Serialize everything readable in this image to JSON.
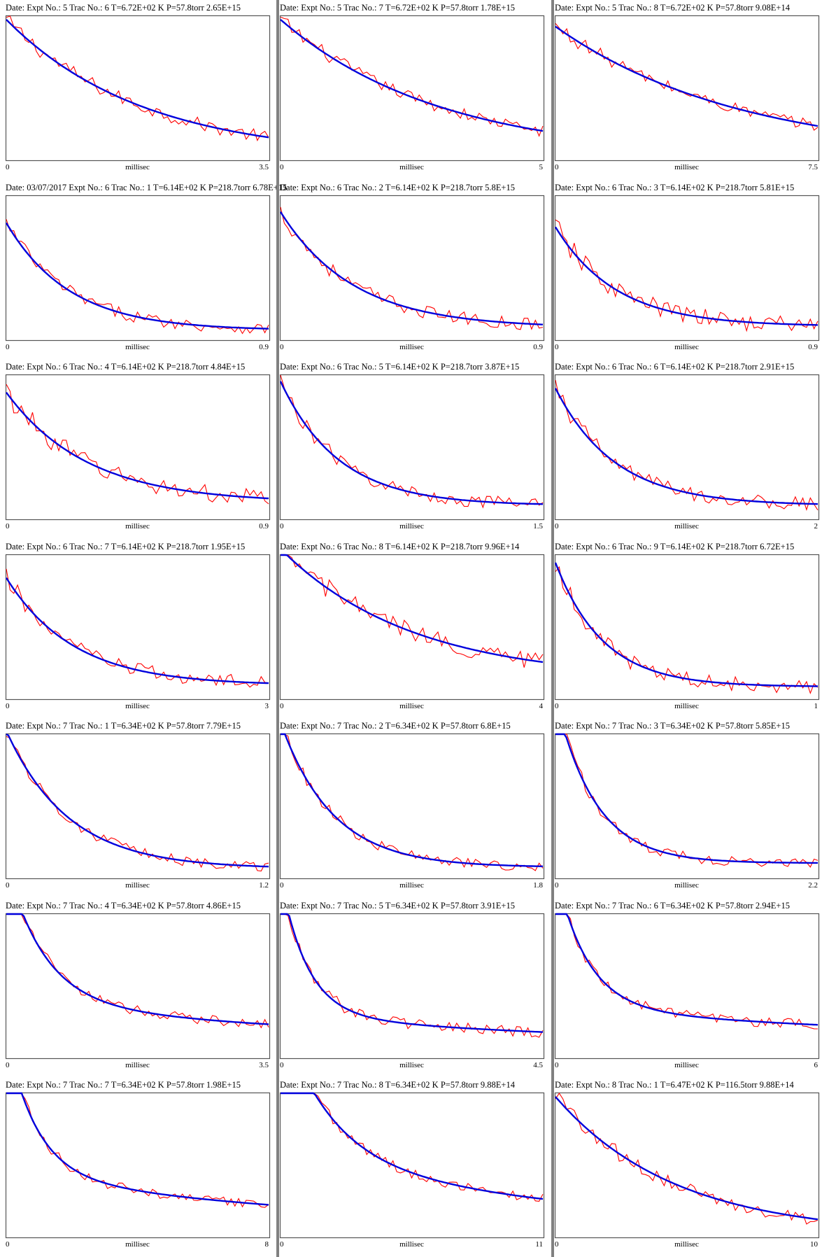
{
  "x_axis_label": "millisec",
  "colors": {
    "signal": "#ff0000",
    "fit": "#0000dd",
    "frame": "#555555",
    "separator": "#808080"
  },
  "chart_data": [
    {
      "type": "line",
      "title": "Date: Expt No.: 5 Trac No.: 6 T=6.72E+02 K P=57.8torr 2.65E+15",
      "xlabel": "millisec",
      "xlim": [
        0,
        3.5
      ],
      "x_tick_labels": [
        "0",
        "3.5"
      ],
      "fit": {
        "y0": 1.0,
        "k": 0.55,
        "c": 0.0
      },
      "noise": 0.045
    },
    {
      "type": "line",
      "title": "Date: Expt No.: 5 Trac No.: 7 T=6.72E+02 K P=57.8torr 1.78E+15",
      "xlabel": "millisec",
      "xlim": [
        0,
        5
      ],
      "x_tick_labels": [
        "0",
        "5"
      ],
      "fit": {
        "y0": 1.0,
        "k": 0.33,
        "c": 0.0
      },
      "noise": 0.04
    },
    {
      "type": "line",
      "title": "Date: Expt No.: 5 Trac No.: 8 T=6.72E+02 K P=57.8torr 9.08E+14",
      "xlabel": "millisec",
      "xlim": [
        0,
        7.5
      ],
      "x_tick_labels": [
        "0",
        "7.5"
      ],
      "fit": {
        "y0": 0.95,
        "k": 0.19,
        "c": 0.0
      },
      "noise": 0.04
    },
    {
      "type": "line",
      "title": "Date: 03/07/2017 Expt No.: 6 Trac No.: 1 T=6.14E+02 K P=218.7torr 6.78E+15",
      "xlabel": "millisec",
      "xlim": [
        0,
        0.9
      ],
      "x_tick_labels": [
        "0",
        "0.9"
      ],
      "fit": {
        "y0": 0.78,
        "k": 4.6,
        "c": 0.05
      },
      "noise": 0.04
    },
    {
      "type": "line",
      "title": "Date: Expt No.: 6 Trac No.: 2 T=6.14E+02 K P=218.7torr 5.8E+15",
      "xlabel": "millisec",
      "xlim": [
        0,
        0.9
      ],
      "x_tick_labels": [
        "0",
        "0.9"
      ],
      "fit": {
        "y0": 0.84,
        "k": 4.0,
        "c": 0.07
      },
      "noise": 0.045
    },
    {
      "type": "line",
      "title": "Date: Expt No.: 6 Trac No.: 3 T=6.14E+02 K P=218.7torr 5.81E+15",
      "xlabel": "millisec",
      "xlim": [
        0,
        0.9
      ],
      "x_tick_labels": [
        "0",
        "0.9"
      ],
      "fit": {
        "y0": 0.72,
        "k": 4.8,
        "c": 0.08
      },
      "noise": 0.06
    },
    {
      "type": "line",
      "title": "Date: Expt No.: 6 Trac No.: 4 T=6.14E+02 K P=218.7torr 4.84E+15",
      "xlabel": "millisec",
      "xlim": [
        0,
        0.9
      ],
      "x_tick_labels": [
        "0",
        "0.9"
      ],
      "fit": {
        "y0": 0.8,
        "k": 3.6,
        "c": 0.1
      },
      "noise": 0.06
    },
    {
      "type": "line",
      "title": "Date: Expt No.: 6 Trac No.: 5 T=6.14E+02 K P=218.7torr 3.87E+15",
      "xlabel": "millisec",
      "xlim": [
        0,
        1.5
      ],
      "x_tick_labels": [
        "0",
        "1.5"
      ],
      "fit": {
        "y0": 0.9,
        "k": 3.0,
        "c": 0.08
      },
      "noise": 0.045
    },
    {
      "type": "line",
      "title": "Date: Expt No.: 6 Trac No.: 6 T=6.14E+02 K P=218.7torr 2.91E+15",
      "xlabel": "millisec",
      "xlim": [
        0,
        2
      ],
      "x_tick_labels": [
        "0",
        "2"
      ],
      "fit": {
        "y0": 0.85,
        "k": 2.2,
        "c": 0.08
      },
      "noise": 0.05
    },
    {
      "type": "line",
      "title": "Date: Expt No.: 6 Trac No.: 7 T=6.14E+02 K P=218.7torr 1.95E+15",
      "xlabel": "millisec",
      "xlim": [
        0,
        3
      ],
      "x_tick_labels": [
        "0",
        "3"
      ],
      "fit": {
        "y0": 0.78,
        "k": 1.3,
        "c": 0.08
      },
      "noise": 0.05
    },
    {
      "type": "line",
      "title": "Date: Expt No.: 6 Trac No.: 8 T=6.14E+02 K P=218.7torr 9.96E+14",
      "xlabel": "millisec",
      "xlim": [
        0,
        4
      ],
      "x_tick_labels": [
        "0",
        "4"
      ],
      "fit": {
        "y0": 0.95,
        "k": 0.5,
        "c": 0.12
      },
      "noise": 0.06
    },
    {
      "type": "line",
      "title": "Date: Expt No.: 6 Trac No.: 9 T=6.14E+02 K P=218.7torr 6.72E+15",
      "xlabel": "millisec",
      "xlim": [
        0,
        1
      ],
      "x_tick_labels": [
        "0",
        "1"
      ],
      "fit": {
        "y0": 0.9,
        "k": 5.5,
        "c": 0.07
      },
      "noise": 0.05
    },
    {
      "type": "line",
      "title": "Date: Expt No.: 7 Trac No.: 1 T=6.34E+02 K P=57.8torr 7.79E+15",
      "xlabel": "millisec",
      "xlim": [
        0,
        1.2
      ],
      "x_tick_labels": [
        "0",
        "1.2"
      ],
      "fit": {
        "y0": 1.0,
        "k": 3.5,
        "c": 0.05
      },
      "noise": 0.035
    },
    {
      "type": "line",
      "title": "Date: Expt No.: 7 Trac No.: 2 T=6.34E+02 K P=57.8torr 6.8E+15",
      "xlabel": "millisec",
      "xlim": [
        0,
        1.8
      ],
      "x_tick_labels": [
        "0",
        "1.8"
      ],
      "fit": {
        "y0": 1.05,
        "k": 2.8,
        "c": 0.06
      },
      "noise": 0.035
    },
    {
      "type": "line",
      "title": "Date: Expt No.: 7 Trac No.: 3 T=6.34E+02 K P=57.8torr 5.85E+15",
      "xlabel": "millisec",
      "xlim": [
        0,
        2.2
      ],
      "x_tick_labels": [
        "0",
        "2.2"
      ],
      "fit": {
        "y0": 1.2,
        "k": 3.0,
        "c": 0.09
      },
      "noise": 0.035
    },
    {
      "type": "line",
      "title": "Date: Expt No.: 7 Trac No.: 4 T=6.34E+02 K P=57.8torr 4.86E+15",
      "xlabel": "millisec",
      "xlim": [
        0,
        3.5
      ],
      "x_tick_labels": [
        "0",
        "3.5"
      ],
      "fit": {
        "y0": 1.0,
        "k": 2.0,
        "c": 0.1,
        "y1": 0.3,
        "k1": 0.25
      },
      "noise": 0.035
    },
    {
      "type": "line",
      "title": "Date: Expt No.: 7 Trac No.: 5 T=6.34E+02 K P=57.8torr 3.91E+15",
      "xlabel": "millisec",
      "xlim": [
        0,
        4.5
      ],
      "x_tick_labels": [
        "0",
        "4.5"
      ],
      "fit": {
        "y0": 1.0,
        "k": 2.2,
        "c": 0.08,
        "y1": 0.22,
        "k1": 0.2
      },
      "noise": 0.04
    },
    {
      "type": "line",
      "title": "Date: Expt No.: 7 Trac No.: 6 T=6.34E+02 K P=57.8torr 2.94E+15",
      "xlabel": "millisec",
      "xlim": [
        0,
        6
      ],
      "x_tick_labels": [
        "0",
        "6"
      ],
      "fit": {
        "y0": 1.0,
        "k": 1.4,
        "c": 0.1,
        "y1": 0.25,
        "k1": 0.12
      },
      "noise": 0.035
    },
    {
      "type": "line",
      "title": "Date: Expt No.: 7 Trac No.: 7 T=6.34E+02 K P=57.8torr 1.98E+15",
      "xlabel": "millisec",
      "xlim": [
        0,
        8
      ],
      "x_tick_labels": [
        "0",
        "8"
      ],
      "fit": {
        "y0": 1.0,
        "k": 1.1,
        "c": 0.05,
        "y1": 0.4,
        "k1": 0.11
      },
      "noise": 0.03
    },
    {
      "type": "line",
      "title": "Date: Expt No.: 7 Trac No.: 8 T=6.34E+02 K P=57.8torr 9.88E+14",
      "xlabel": "millisec",
      "xlim": [
        0,
        11
      ],
      "x_tick_labels": [
        "0",
        "11"
      ],
      "fit": {
        "y0": 1.0,
        "k": 0.5,
        "c": 0.05,
        "y1": 0.55,
        "k1": 0.09
      },
      "noise": 0.035
    },
    {
      "type": "line",
      "title": "Date: Expt No.: 8 Trac No.: 1 T=6.47E+02 K P=116.5torr 9.88E+14",
      "xlabel": "millisec",
      "xlim": [
        0,
        10
      ],
      "x_tick_labels": [
        "0",
        "10"
      ],
      "fit": {
        "y0": 1.0,
        "k": 0.22,
        "c": 0.0
      },
      "noise": 0.045
    }
  ]
}
